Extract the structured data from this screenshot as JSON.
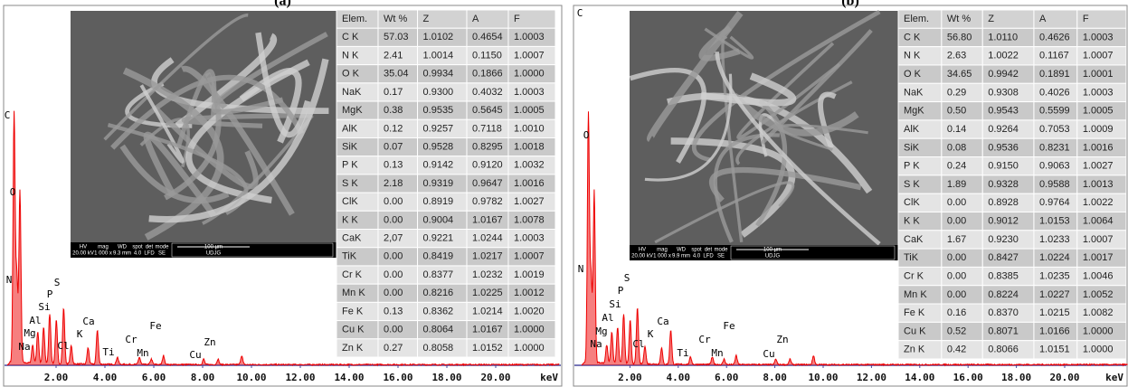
{
  "panels": [
    {
      "label": "(a)",
      "image": {
        "info_headers": [
          "HV",
          "mag",
          "WD",
          "spot",
          "det",
          "mode"
        ],
        "info_values": [
          "20.00 kV",
          "1 000 x",
          "9.3 mm",
          "4.0",
          "LFD",
          "SE"
        ],
        "scale": "100 µm",
        "lab": "UDJG"
      },
      "peaks": [
        "C",
        "O",
        "N",
        "S",
        "P",
        "Si",
        "Al",
        "Mg",
        "Na",
        "Cl",
        "K",
        "Ca",
        "Ti",
        "Cr",
        "Mn",
        "Fe",
        "Cu",
        "Zn"
      ],
      "axis": {
        "ticks": [
          "2.00",
          "4.00",
          "6.00",
          "8.00",
          "10.00",
          "12.00",
          "14.00",
          "16.00",
          "18.00",
          "20.00"
        ],
        "unit": "keV"
      },
      "table": {
        "header": [
          "Elem.",
          "Wt %",
          "Z",
          "A",
          "F"
        ],
        "rows": [
          [
            "C K",
            "57.03",
            "1.0102",
            "0.4654",
            "1.0003"
          ],
          [
            "N K",
            "2.41",
            "1.0014",
            "0.1150",
            "1.0007"
          ],
          [
            "O K",
            "35.04",
            "0.9934",
            "0.1866",
            "1.0000"
          ],
          [
            "NaK",
            "0.17",
            "0.9300",
            "0.4032",
            "1.0003"
          ],
          [
            "MgK",
            "0.38",
            "0.9535",
            "0.5645",
            "1.0005"
          ],
          [
            "AlK",
            "0.12",
            "0.9257",
            "0.7118",
            "1.0010"
          ],
          [
            "SiK",
            "0.07",
            "0.9528",
            "0.8295",
            "1.0018"
          ],
          [
            "P K",
            "0.13",
            "0.9142",
            "0.9120",
            "1.0032"
          ],
          [
            "S K",
            "2.18",
            "0.9319",
            "0.9647",
            "1.0016"
          ],
          [
            "ClK",
            "0.00",
            "0.8919",
            "0.9782",
            "1.0027"
          ],
          [
            "K K",
            "0.00",
            "0.9004",
            "1.0167",
            "1.0078"
          ],
          [
            "CaK",
            "2,07",
            "0.9221",
            "1.0244",
            "1.0003"
          ],
          [
            "TiK",
            "0.00",
            "0.8419",
            "1.0217",
            "1.0007"
          ],
          [
            "Cr K",
            "0.00",
            "0.8377",
            "1.0232",
            "1.0019"
          ],
          [
            "Mn K",
            "0.00",
            "0.8216",
            "1.0225",
            "1.0012"
          ],
          [
            "Fe K",
            "0.13",
            "0.8362",
            "1.0214",
            "1.0020"
          ],
          [
            "Cu K",
            "0.00",
            "0.8064",
            "1.0167",
            "1.0000"
          ],
          [
            "Zn K",
            "0.27",
            "0.8058",
            "1.0152",
            "1.0000"
          ]
        ]
      }
    },
    {
      "label": "(b)",
      "image": {
        "info_headers": [
          "HV",
          "mag",
          "WD",
          "spot",
          "det",
          "mode"
        ],
        "info_values": [
          "20.00 kV",
          "1 000 x",
          "9.9 mm",
          "4.0",
          "LFD",
          "SE"
        ],
        "scale": "100 µm",
        "lab": "UDJG"
      },
      "peaks": [
        "C",
        "O",
        "N",
        "S",
        "P",
        "Si",
        "Al",
        "Mg",
        "Na",
        "Cl",
        "K",
        "Ca",
        "Ti",
        "Cr",
        "Mn",
        "Fe",
        "Cu",
        "Zn"
      ],
      "axis": {
        "ticks": [
          "2.00",
          "4.00",
          "6.00",
          "8.00",
          "10.00",
          "12.00",
          "14.00",
          "16.00",
          "18.00",
          "20.00"
        ],
        "unit": "keV"
      },
      "table": {
        "header": [
          "Elem.",
          "Wt %",
          "Z",
          "A",
          "F"
        ],
        "rows": [
          [
            "C K",
            "56.80",
            "1.0110",
            "0.4626",
            "1.0003"
          ],
          [
            "N K",
            "2.63",
            "1.0022",
            "0.1167",
            "1.0007"
          ],
          [
            "O K",
            "34.65",
            "0.9942",
            "0.1891",
            "1.0001"
          ],
          [
            "NaK",
            "0.29",
            "0.9308",
            "0.4026",
            "1.0003"
          ],
          [
            "MgK",
            "0.50",
            "0.9543",
            "0.5599",
            "1.0005"
          ],
          [
            "AlK",
            "0.14",
            "0.9264",
            "0.7053",
            "1.0009"
          ],
          [
            "SiK",
            "0.08",
            "0.9536",
            "0.8231",
            "1.0016"
          ],
          [
            "P K",
            "0.24",
            "0.9150",
            "0.9063",
            "1.0027"
          ],
          [
            "S K",
            "1.89",
            "0.9328",
            "0.9588",
            "1.0013"
          ],
          [
            "ClK",
            "0.00",
            "0.8928",
            "0.9764",
            "1.0022"
          ],
          [
            "K K",
            "0.00",
            "0.9012",
            "1.0153",
            "1.0064"
          ],
          [
            "CaK",
            "1.67",
            "0.9230",
            "1.0233",
            "1.0007"
          ],
          [
            "TiK",
            "0.00",
            "0.8427",
            "1.0224",
            "1.0017"
          ],
          [
            "Cr K",
            "0.00",
            "0.8385",
            "1.0235",
            "1.0046"
          ],
          [
            "Mn K",
            "0.00",
            "0.8224",
            "1.0227",
            "1.0052"
          ],
          [
            "Fe K",
            "0.16",
            "0.8370",
            "1.0215",
            "1.0082"
          ],
          [
            "Cu K",
            "0.52",
            "0.8071",
            "1.0166",
            "1.0000"
          ],
          [
            "Zn K",
            "0.42",
            "0.8066",
            "1.0151",
            "1.0000"
          ]
        ]
      }
    }
  ]
}
